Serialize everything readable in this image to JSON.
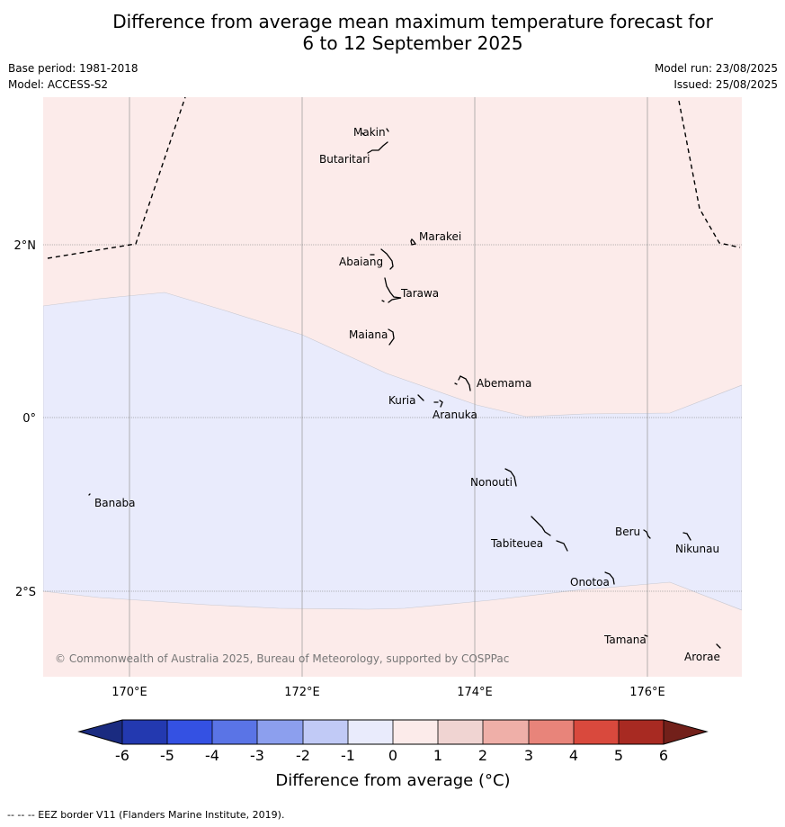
{
  "header": {
    "title_line1": "Difference from average mean maximum temperature forecast for",
    "title_line2": "6 to 12 September 2025",
    "base_period": "Base period: 1981-2018",
    "model": "Model: ACCESS-S2",
    "model_run": "Model run: 23/08/2025",
    "issued": "Issued: 25/08/2025"
  },
  "map": {
    "lat_labels": [
      "2°N",
      "0°",
      "2°S"
    ],
    "lon_labels": [
      "170°E",
      "172°E",
      "174°E",
      "176°E"
    ],
    "islands": [
      "Makin",
      "Butaritari",
      "Marakei",
      "Abaiang",
      "Tarawa",
      "Maiana",
      "Abemama",
      "Kuria",
      "Aranuka",
      "Nonouti",
      "Banaba",
      "Beru",
      "Nikunau",
      "Tabiteuea",
      "Onotoa",
      "Tamana",
      "Arorae"
    ],
    "copyright": "© Commonwealth of Australia 2025, Bureau of Meteorology, supported by COSPPac",
    "fill_colors": {
      "warm_0_1": "#fcebea",
      "cool_-1_0": "#e9ebfc"
    }
  },
  "colorbar": {
    "ticks": [
      "-6",
      "-5",
      "-4",
      "-3",
      "-2",
      "-1",
      "0",
      "1",
      "2",
      "3",
      "4",
      "5",
      "6"
    ],
    "colors": [
      "#1a2b80",
      "#2339b0",
      "#3451e3",
      "#5a74e6",
      "#8c9fee",
      "#c1caf6",
      "#e9ebfc",
      "#fcebea",
      "#f0d4d2",
      "#efafa8",
      "#e8847a",
      "#d9493d",
      "#a82a22",
      "#72201a"
    ],
    "label": "Difference from average (°C)"
  },
  "footer": {
    "eez_note": "--  --  -- EEZ border V11 (Flanders Marine Institute, 2019)."
  }
}
